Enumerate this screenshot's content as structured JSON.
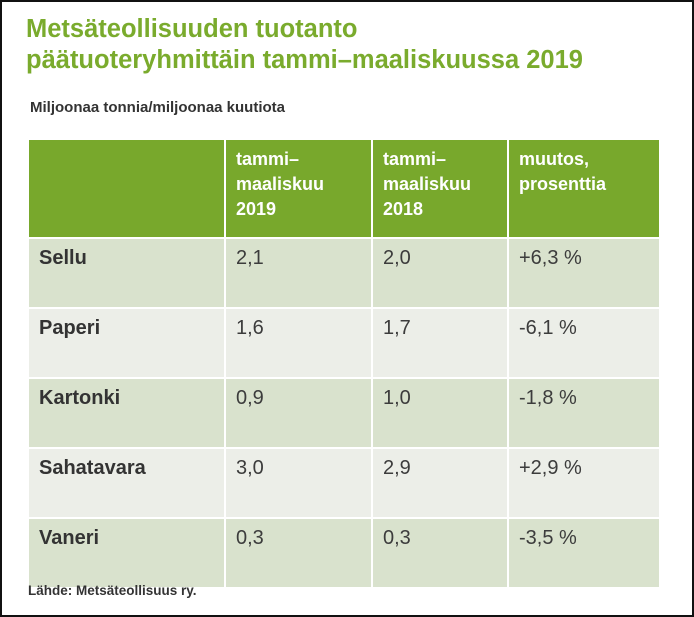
{
  "chart_data": {
    "type": "table",
    "title_line1": "Metsäteollisuuden tuotanto",
    "title_line2": "päätuoteryhmittäin tammi–maaliskuussa 2019",
    "subtitle": "Miljoonaa tonnia/miljoonaa kuutiota",
    "columns": [
      "",
      "tammi–\nmaaliskuu\n2019",
      "tammi–\nmaaliskuu\n2018",
      "muutos,\nprosenttia"
    ],
    "rows": [
      {
        "label": "Sellu",
        "v2019": "2,1",
        "v2018": "2,0",
        "change": "+6,3 %"
      },
      {
        "label": "Paperi",
        "v2019": "1,6",
        "v2018": "1,7",
        "change": "-6,1 %"
      },
      {
        "label": "Kartonki",
        "v2019": "0,9",
        "v2018": "1,0",
        "change": "-1,8 %"
      },
      {
        "label": "Sahatavara",
        "v2019": "3,0",
        "v2018": "2,9",
        "change": "+2,9 %"
      },
      {
        "label": "Vaneri",
        "v2019": "0,3",
        "v2018": "0,3",
        "change": "-3,5 %"
      }
    ],
    "source": "Lähde: Metsäteollisuus ry."
  },
  "colors": {
    "title": "#7aab2d",
    "header_bg": "#78a82c",
    "row_odd": "#d9e2cd",
    "row_even": "#eceee8"
  }
}
